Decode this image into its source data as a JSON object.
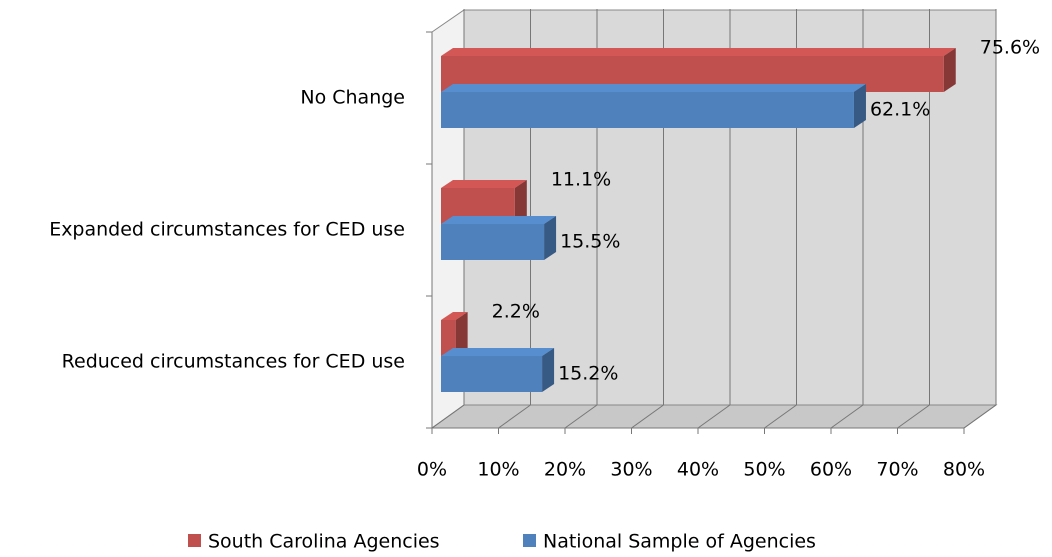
{
  "chart_data": {
    "type": "bar3d_horizontal",
    "categories": [
      "No Change",
      "Expanded circumstances for CED use",
      "Reduced circumstances for CED use"
    ],
    "series": [
      {
        "name": "South Carolina Agencies",
        "color": "#c0504d",
        "values": [
          75.6,
          11.1,
          2.2
        ],
        "value_labels": [
          "75.6%",
          "11.1%",
          "2.2%"
        ]
      },
      {
        "name": "National Sample of Agencies",
        "color": "#4f81bd",
        "values": [
          62.1,
          15.5,
          15.2
        ],
        "value_labels": [
          "62.1%",
          "15.5%",
          "15.2%"
        ]
      }
    ],
    "xlim": [
      0,
      80
    ],
    "xticks": [
      {
        "value": 0,
        "label": "0%"
      },
      {
        "value": 10,
        "label": "10%"
      },
      {
        "value": 20,
        "label": "20%"
      },
      {
        "value": 30,
        "label": "30%"
      },
      {
        "value": 40,
        "label": "40%"
      },
      {
        "value": 50,
        "label": "50%"
      },
      {
        "value": 60,
        "label": "60%"
      },
      {
        "value": 70,
        "label": "70%"
      },
      {
        "value": 80,
        "label": "80%"
      }
    ],
    "grid": true,
    "legend": "bottom"
  }
}
